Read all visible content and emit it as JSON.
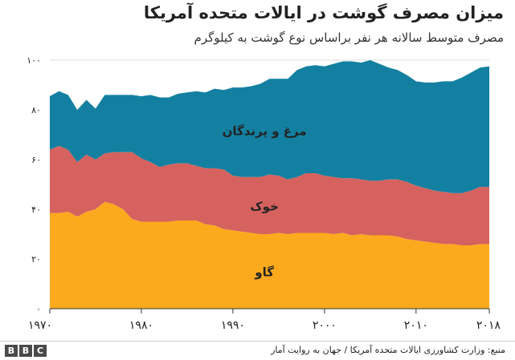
{
  "chart_data": {
    "type": "area",
    "stacked": true,
    "title": "میزان مصرف گوشت در ایالات متحده آمریکا",
    "subtitle": "مصرف متوسط سالانه هر نفر براساس نوع گوشت به کیلوگرم",
    "x": [
      1970,
      1971,
      1972,
      1973,
      1974,
      1975,
      1976,
      1977,
      1978,
      1979,
      1980,
      1981,
      1982,
      1983,
      1984,
      1985,
      1986,
      1987,
      1988,
      1989,
      1990,
      1991,
      1992,
      1993,
      1994,
      1995,
      1996,
      1997,
      1998,
      1999,
      2000,
      2001,
      2002,
      2003,
      2004,
      2005,
      2006,
      2007,
      2008,
      2009,
      2010,
      2011,
      2012,
      2013,
      2014,
      2015,
      2016,
      2017,
      2018
    ],
    "series": [
      {
        "name": "گاو",
        "color": "#fcaa1d",
        "values": [
          38.5,
          38.5,
          39,
          37,
          39,
          40,
          43,
          42,
          40,
          36,
          35,
          35,
          35,
          35,
          35.5,
          35.5,
          35.5,
          34,
          33.5,
          32,
          31.5,
          31,
          30.5,
          30,
          30,
          30.5,
          30,
          30.5,
          30.5,
          30.5,
          30.5,
          30,
          30.5,
          29.5,
          30,
          29.5,
          29.5,
          29.5,
          29,
          28,
          27.5,
          27,
          26.5,
          26,
          26,
          25.5,
          25.5,
          26,
          26
        ]
      },
      {
        "name": "خوک",
        "color": "#d5625e",
        "values": [
          25.5,
          27,
          25,
          22,
          23,
          20,
          19.5,
          21,
          23,
          27,
          25.5,
          24,
          22,
          23,
          23,
          23,
          22,
          22.5,
          23,
          24,
          22,
          22,
          22.5,
          23,
          24,
          23,
          22,
          22.5,
          24,
          24,
          23,
          23,
          22,
          23,
          22,
          22,
          22,
          22.5,
          23,
          23,
          22,
          21.5,
          21,
          21,
          20.5,
          21,
          22,
          23,
          23
        ]
      },
      {
        "name": "مرغ و پرندگان",
        "color": "#1380a1",
        "values": [
          21.5,
          22,
          22,
          21,
          22,
          20.5,
          23.5,
          23,
          23,
          23,
          25,
          27,
          28,
          27,
          28,
          28.5,
          30,
          30.5,
          32,
          32,
          35.5,
          36,
          36.5,
          37.5,
          38.5,
          39,
          40.5,
          43,
          43,
          43.5,
          44,
          45.5,
          47,
          47,
          47,
          48.5,
          47,
          45,
          44,
          43,
          42,
          42.5,
          43.5,
          44.5,
          45,
          46.5,
          47.5,
          48,
          48.5
        ]
      }
    ],
    "xticks": [
      "۱۹۷۰",
      "۱۹۸۰",
      "۱۹۹۰",
      "۲۰۰۰",
      "۲۰۱۰",
      "۲۰۱۸"
    ],
    "xtick_values": [
      1970,
      1980,
      1990,
      2000,
      2010,
      2018
    ],
    "yticks": [
      "۰",
      "۲۰",
      "۴۰",
      "۶۰",
      "۸۰",
      "۱۰۰"
    ],
    "ytick_values": [
      0,
      20,
      40,
      60,
      80,
      100
    ],
    "ylim": [
      0,
      100
    ],
    "xlim": [
      1970,
      2018
    ],
    "grid": true
  },
  "footer": {
    "source": "منبع: وزارت کشاورزی ایالات متحده آمریکا / جهان به روایت آمار",
    "logo": [
      "B",
      "B",
      "C"
    ]
  }
}
